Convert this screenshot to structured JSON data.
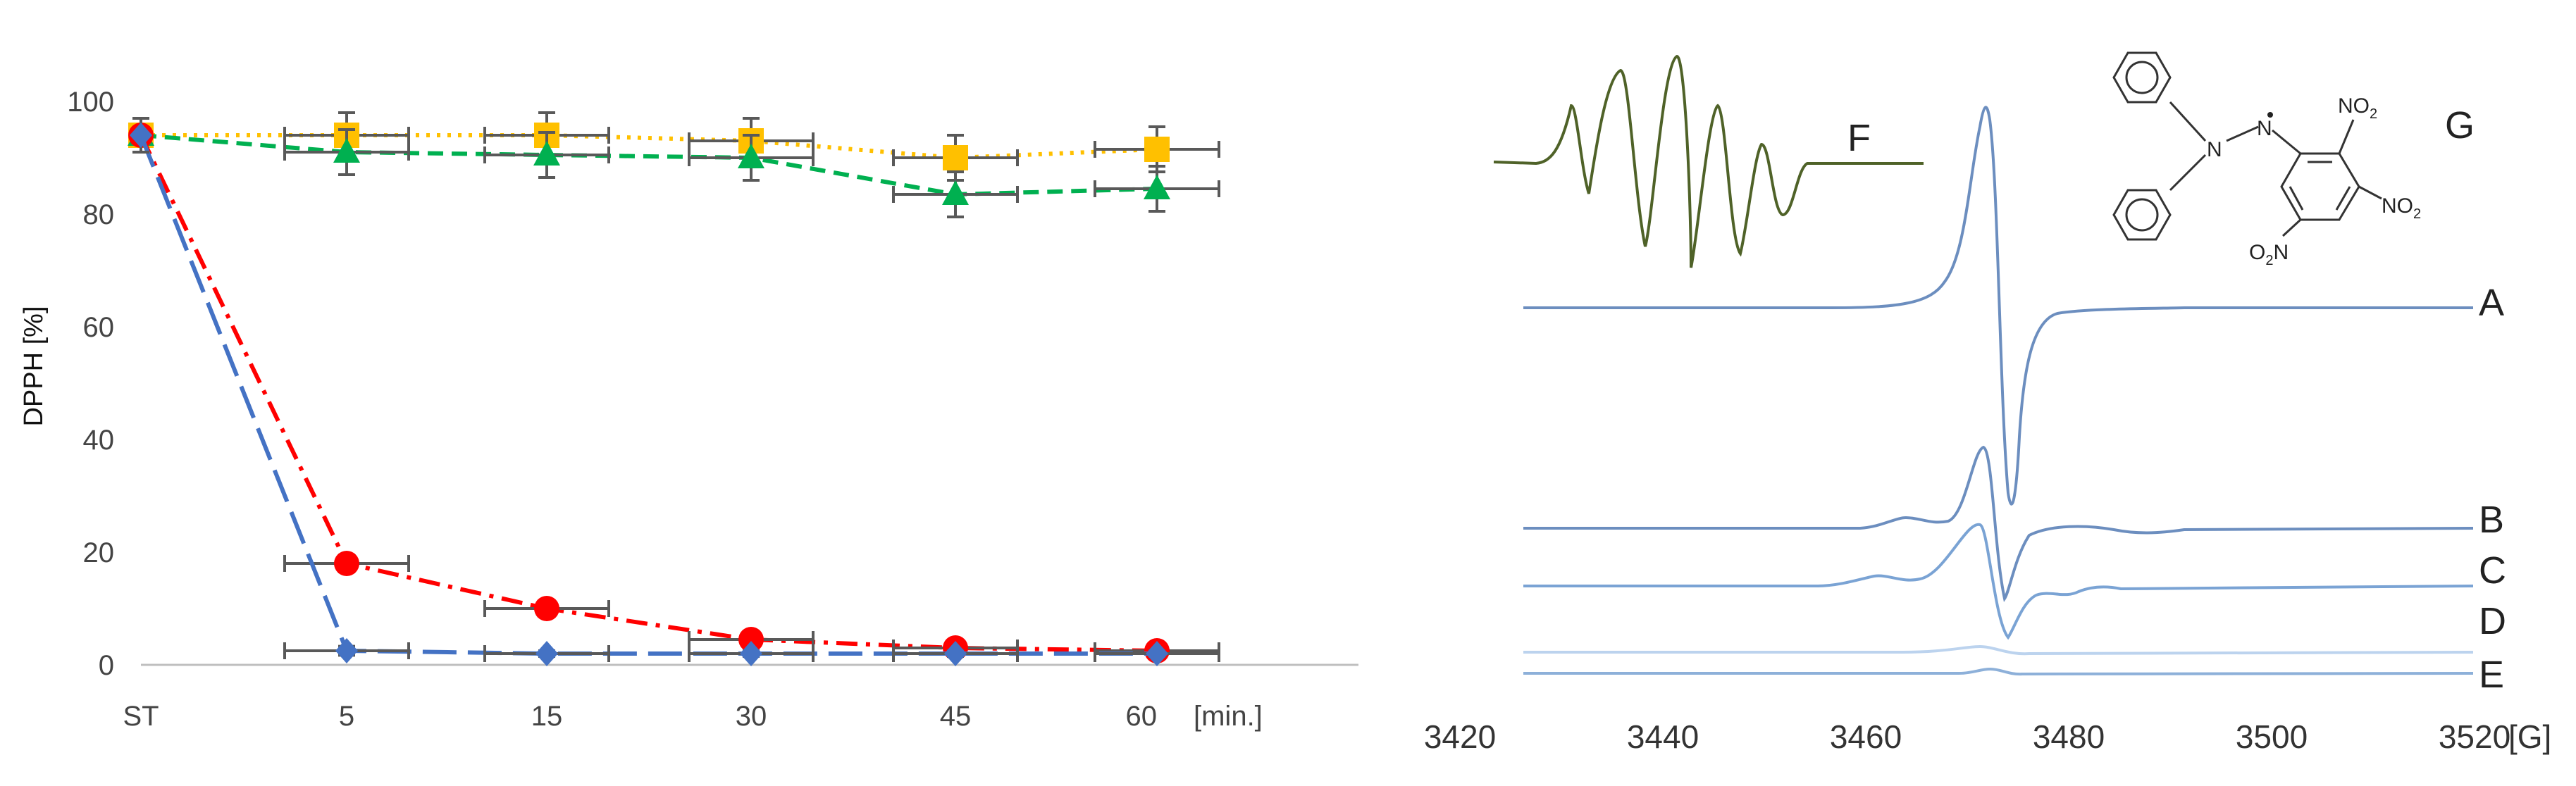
{
  "chart_data": [
    {
      "type": "line",
      "title": "",
      "ylabel": "DPPH [%]",
      "xlabel": "",
      "categories": [
        "ST",
        "5",
        "15",
        "30",
        "45",
        "60"
      ],
      "x_unit": "[min.]",
      "ylim": [
        0,
        100
      ],
      "yticks": [
        0,
        20,
        40,
        60,
        80,
        100
      ],
      "grid": false,
      "error_bars": true,
      "series": [
        {
          "marker": "square",
          "color": "#ffc000",
          "line": "dotted",
          "values": [
            94,
            94,
            94,
            93,
            90,
            91.5
          ],
          "errors": [
            3,
            4,
            4,
            4,
            4,
            4
          ]
        },
        {
          "marker": "triangle",
          "color": "#00b050",
          "line": "dashed",
          "values": [
            94,
            91,
            90.5,
            90,
            83.5,
            84.5
          ],
          "errors": [
            3,
            4,
            4,
            4,
            4,
            4
          ]
        },
        {
          "marker": "circle",
          "color": "#ff0000",
          "line": "dash-dot",
          "values": [
            94,
            18,
            10,
            4.5,
            3,
            2.5
          ],
          "errors": [
            3,
            1.5,
            1,
            1,
            0.8,
            0.8
          ]
        },
        {
          "marker": "diamond",
          "color": "#4472c4",
          "line": "long-dash",
          "values": [
            94,
            2.5,
            2,
            2,
            2,
            2
          ],
          "errors": [
            3,
            0.8,
            0.5,
            0.5,
            0.5,
            0.5
          ]
        }
      ]
    },
    {
      "type": "line",
      "title": "",
      "xlabel": "[G]",
      "xlim": [
        3420,
        3520
      ],
      "xticks": [
        3420,
        3440,
        3460,
        3480,
        3500,
        3520
      ],
      "grid": false,
      "trace_labels": [
        "A",
        "B",
        "C",
        "D",
        "E"
      ],
      "inset_label": "F",
      "structure_label": "G",
      "structure_text": {
        "n1": "N",
        "n2": "N",
        "no2": "NO",
        "sub": "2",
        "o2n": "O",
        "sub2": "2",
        "n3": "N"
      }
    }
  ]
}
